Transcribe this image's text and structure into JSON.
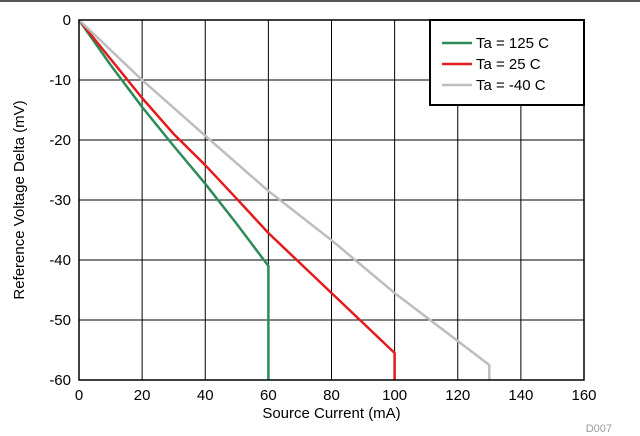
{
  "chart_data": {
    "type": "line",
    "title": "",
    "xlabel": "Source Current (mA)",
    "ylabel": "Reference Voltage Delta (mV)",
    "xlim": [
      0,
      160
    ],
    "ylim": [
      -60,
      0
    ],
    "x_ticks": [
      0,
      20,
      40,
      60,
      80,
      100,
      120,
      140,
      160
    ],
    "y_ticks": [
      0,
      -10,
      -20,
      -30,
      -40,
      -50,
      -60
    ],
    "x_tick_labels": [
      "0",
      "20",
      "40",
      "60",
      "80",
      "100",
      "120",
      "140",
      "160"
    ],
    "y_tick_labels": [
      "0",
      "-10",
      "-20",
      "-30",
      "-40",
      "-50",
      "-60"
    ],
    "grid": true,
    "legend_position": "top-right",
    "series": [
      {
        "name": "Ta = 125 C",
        "color": "#2e8b57",
        "x": [
          0,
          10,
          20,
          30,
          40,
          50,
          60,
          60
        ],
        "y": [
          0,
          -7.5,
          -14.5,
          -21,
          -27.3,
          -34,
          -41,
          -60
        ]
      },
      {
        "name": "Ta = 25 C",
        "color": "#e41a1c",
        "x": [
          0,
          10,
          20,
          30,
          40,
          50,
          60,
          70,
          80,
          90,
          100,
          100
        ],
        "y": [
          0,
          -6.5,
          -13,
          -19,
          -24.2,
          -29.8,
          -35.5,
          -40.5,
          -45.5,
          -50.5,
          -55.5,
          -60
        ]
      },
      {
        "name": "Ta = -40 C",
        "color": "#bdbdbd",
        "x": [
          0,
          20,
          40,
          60,
          80,
          100,
          120,
          130,
          130
        ],
        "y": [
          0,
          -10,
          -19.3,
          -28.5,
          -36.7,
          -45.5,
          -53.5,
          -57.5,
          -60
        ]
      }
    ],
    "figure_id": "D007"
  }
}
